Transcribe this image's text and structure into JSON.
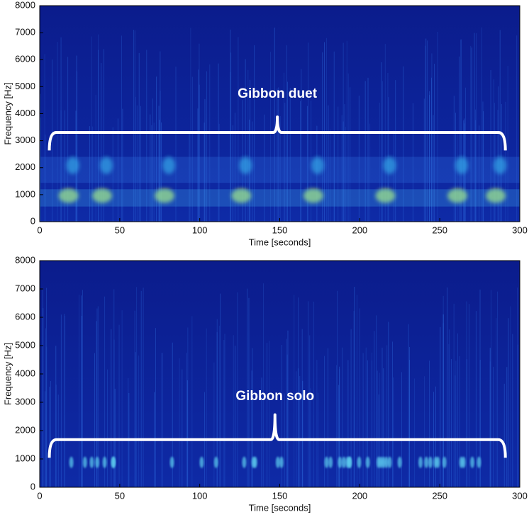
{
  "chart_data": [
    {
      "type": "spectrogram",
      "annotation": "Gibbon duet",
      "xlabel": "Time [seconds]",
      "ylabel": "Frequency [Hz]",
      "xlim": [
        0,
        300
      ],
      "ylim": [
        0,
        8000
      ],
      "xticks": [
        0,
        50,
        100,
        150,
        200,
        250,
        300
      ],
      "yticks": [
        0,
        1000,
        2000,
        3000,
        4000,
        5000,
        6000,
        7000,
        8000
      ]
    },
    {
      "type": "spectrogram",
      "annotation": "Gibbon solo",
      "xlabel": "Time [seconds]",
      "ylabel": "Frequency [Hz]",
      "xlim": [
        0,
        300
      ],
      "ylim": [
        0,
        8000
      ],
      "xticks": [
        0,
        50,
        100,
        150,
        200,
        250,
        300
      ],
      "yticks": [
        0,
        1000,
        2000,
        3000,
        4000,
        5000,
        6000,
        7000,
        8000
      ]
    }
  ]
}
